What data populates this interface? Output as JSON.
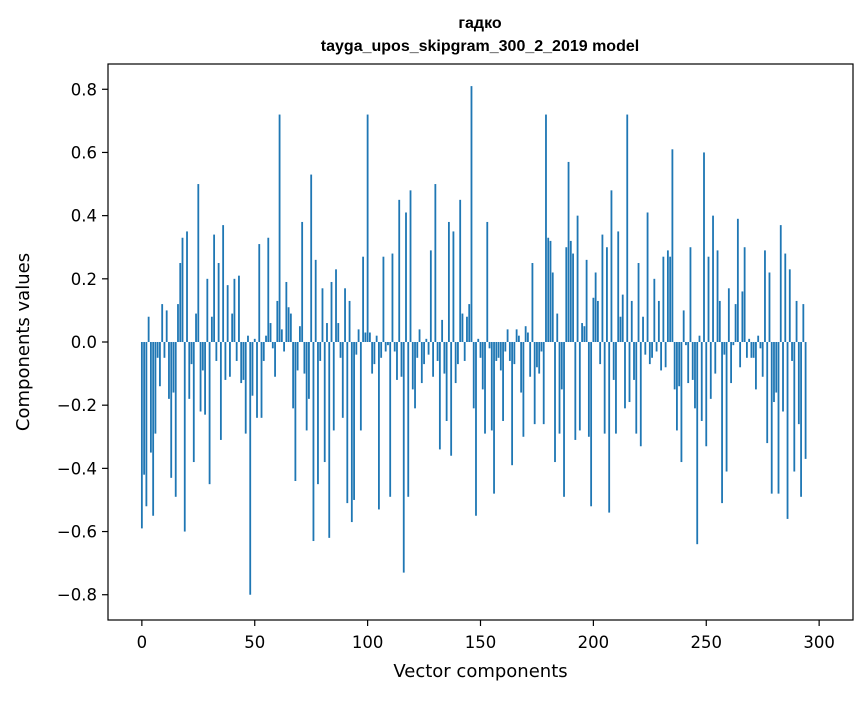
{
  "chart_data": {
    "type": "bar",
    "title": "гадко",
    "subtitle": "tayga_upos_skipgram_300_2_2019 model",
    "xlabel": "Vector components",
    "ylabel": "Components values",
    "xlim": [
      -15,
      315
    ],
    "ylim": [
      -0.88,
      0.88
    ],
    "xticks": [
      0,
      50,
      100,
      150,
      200,
      250,
      300
    ],
    "yticks": [
      0.8,
      0.6,
      0.4,
      0.2,
      0.0,
      -0.2,
      -0.4,
      -0.6,
      -0.8
    ],
    "ytick_labels": [
      "0.8",
      "0.6",
      "0.4",
      "0.2",
      "0.0",
      "−0.2",
      "−0.4",
      "−0.6",
      "−0.8"
    ],
    "grid": false,
    "color": "#1f77b4",
    "values": [
      -0.59,
      -0.42,
      -0.52,
      0.08,
      -0.35,
      -0.55,
      -0.29,
      -0.05,
      -0.14,
      0.12,
      -0.05,
      0.1,
      -0.18,
      -0.43,
      -0.16,
      -0.49,
      0.12,
      0.25,
      0.33,
      -0.6,
      0.35,
      -0.18,
      -0.07,
      -0.38,
      0.09,
      0.5,
      -0.22,
      -0.09,
      -0.23,
      0.2,
      -0.45,
      0.08,
      0.34,
      -0.06,
      0.25,
      -0.31,
      0.37,
      -0.12,
      0.18,
      -0.11,
      0.09,
      0.2,
      -0.06,
      0.21,
      -0.13,
      -0.12,
      -0.29,
      0.02,
      -0.8,
      -0.17,
      0.01,
      -0.24,
      0.31,
      -0.24,
      -0.06,
      0.02,
      0.33,
      0.06,
      -0.02,
      -0.11,
      0.13,
      0.72,
      0.04,
      -0.03,
      0.19,
      0.11,
      0.09,
      -0.21,
      -0.44,
      -0.09,
      0.05,
      0.38,
      -0.1,
      -0.28,
      -0.18,
      0.53,
      -0.63,
      0.26,
      -0.45,
      -0.06,
      0.17,
      -0.38,
      0.06,
      -0.62,
      0.19,
      -0.28,
      0.23,
      0.06,
      -0.05,
      -0.24,
      0.17,
      -0.51,
      0.13,
      -0.57,
      -0.5,
      -0.04,
      0.04,
      -0.28,
      0.27,
      0.03,
      0.72,
      0.03,
      -0.1,
      -0.07,
      0.02,
      -0.53,
      -0.05,
      0.27,
      -0.03,
      -0.01,
      -0.49,
      0.28,
      -0.03,
      -0.12,
      0.45,
      -0.11,
      -0.73,
      0.41,
      -0.49,
      0.48,
      -0.15,
      -0.21,
      -0.05,
      0.04,
      -0.13,
      -0.07,
      0.01,
      -0.04,
      0.29,
      -0.11,
      0.5,
      -0.06,
      -0.34,
      0.07,
      -0.1,
      -0.25,
      0.38,
      -0.36,
      0.35,
      -0.13,
      -0.07,
      0.45,
      0.09,
      -0.06,
      0.08,
      0.12,
      0.81,
      -0.21,
      -0.55,
      0.01,
      -0.05,
      -0.15,
      -0.29,
      0.38,
      -0.02,
      -0.28,
      -0.48,
      -0.06,
      -0.05,
      -0.09,
      -0.25,
      -0.03,
      0.04,
      -0.06,
      -0.39,
      -0.07,
      0.04,
      0.02,
      -0.16,
      -0.3,
      0.05,
      0.03,
      -0.11,
      0.25,
      -0.26,
      -0.08,
      -0.1,
      -0.03,
      -0.26,
      0.72,
      0.33,
      0.32,
      0.22,
      -0.38,
      0.09,
      -0.29,
      -0.15,
      -0.49,
      0.3,
      0.57,
      0.32,
      0.28,
      -0.31,
      0.4,
      -0.28,
      0.06,
      0.05,
      0.26,
      -0.3,
      -0.52,
      0.14,
      0.22,
      0.13,
      -0.07,
      0.34,
      -0.29,
      0.3,
      -0.54,
      0.48,
      -0.12,
      -0.29,
      0.35,
      0.08,
      0.15,
      -0.21,
      0.72,
      -0.19,
      0.13,
      -0.12,
      -0.29,
      0.25,
      -0.33,
      0.08,
      -0.04,
      0.41,
      -0.07,
      -0.05,
      0.2,
      -0.03,
      0.13,
      -0.09,
      0.27,
      -0.08,
      0.29,
      0.27,
      0.61,
      -0.15,
      -0.28,
      -0.14,
      -0.38,
      0.1,
      -0.01,
      -0.13,
      0.3,
      -0.12,
      -0.21,
      -0.64,
      0.02,
      -0.25,
      0.6,
      -0.33,
      0.27,
      -0.18,
      0.4,
      -0.1,
      0.29,
      0.13,
      -0.51,
      -0.04,
      -0.41,
      0.17,
      -0.13,
      -0.01,
      0.12,
      0.39,
      -0.08,
      0.16,
      0.3,
      -0.05,
      0.01,
      -0.05,
      -0.05,
      -0.15,
      0.02,
      -0.02,
      -0.11,
      0.29,
      -0.32,
      0.22,
      -0.48,
      -0.19,
      -0.16,
      -0.48,
      0.37,
      -0.22,
      0.28,
      -0.56,
      0.23,
      -0.06,
      -0.41,
      0.13,
      -0.26,
      -0.49,
      0.12,
      -0.37
    ]
  }
}
